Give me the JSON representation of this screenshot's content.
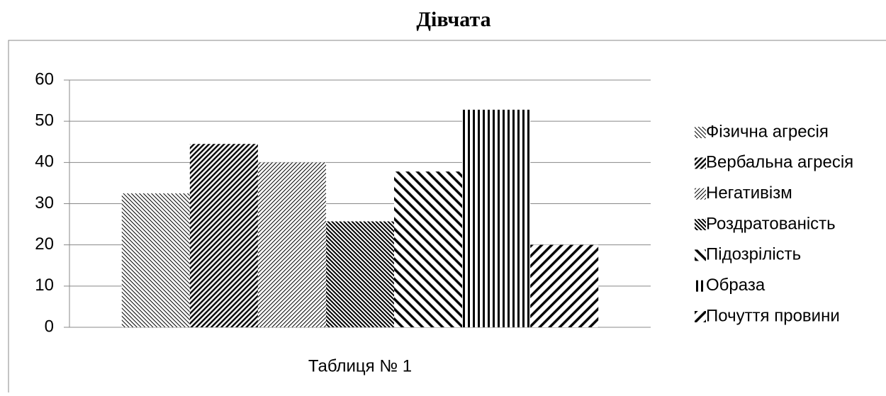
{
  "chart_data": {
    "type": "bar",
    "title": "Дівчата",
    "categories": [
      "Таблиця № 1"
    ],
    "series": [
      {
        "name": "Фізична агресія",
        "color": "#000000",
        "pattern": "light-downward-diagonal",
        "values": [
          32.5
        ]
      },
      {
        "name": "Вербальна агресія",
        "color": "#000000",
        "pattern": "dark-upward-diagonal",
        "values": [
          44.5
        ]
      },
      {
        "name": "Негативізм",
        "color": "#000000",
        "pattern": "light-upward-diagonal",
        "values": [
          40
        ]
      },
      {
        "name": "Роздратованість",
        "color": "#000000",
        "pattern": "dark-downward-diagonal",
        "values": [
          25.7
        ]
      },
      {
        "name": "Підозрілість",
        "color": "#000000",
        "pattern": "wide-downward-diagonal",
        "values": [
          37.8
        ]
      },
      {
        "name": "Образа",
        "color": "#000000",
        "pattern": "vertical",
        "values": [
          52.8
        ]
      },
      {
        "name": "Почуття провини",
        "color": "#000000",
        "pattern": "wide-upward-diagonal",
        "values": [
          20
        ]
      }
    ],
    "ylim": [
      0,
      60
    ],
    "yticks": [
      0,
      10,
      20,
      30,
      40,
      50,
      60
    ],
    "grid": true,
    "legend": "right"
  }
}
